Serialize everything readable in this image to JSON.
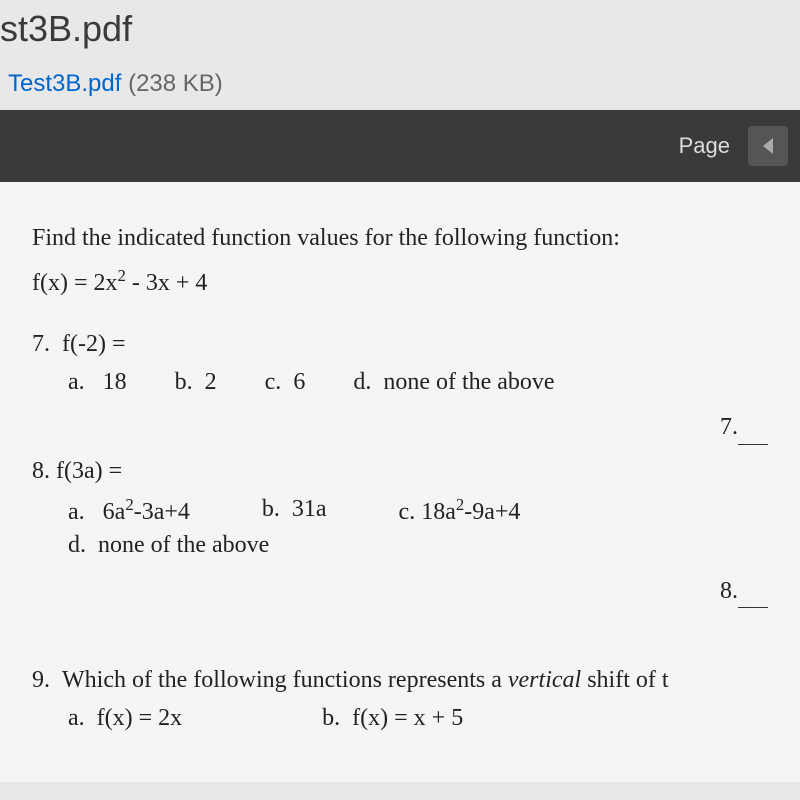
{
  "header": {
    "title": "st3B.pdf",
    "file_link": "Test3B.pdf",
    "file_size": "(238 KB)"
  },
  "toolbar": {
    "page_label": "Page"
  },
  "document": {
    "instruction": "Find the indicated function values for the following function:",
    "function": "f(x) = 2x² - 3x + 4",
    "q7": {
      "number": "7.",
      "prompt": "f(-2) =",
      "opt_a_label": "a.",
      "opt_a": "18",
      "opt_b_label": "b.",
      "opt_b": "2",
      "opt_c_label": "c.",
      "opt_c": "6",
      "opt_d_label": "d.",
      "opt_d": "none of the above",
      "answer_label": "7."
    },
    "q8": {
      "number": "8.",
      "prompt": "f(3a) =",
      "opt_a_label": "a.",
      "opt_a": "6a²-3a+4",
      "opt_b_label": "b.",
      "opt_b": "31a",
      "opt_c_label": "c.",
      "opt_c": "18a²-9a+4",
      "opt_d_label": "d.",
      "opt_d": "none of the above",
      "answer_label": "8."
    },
    "q9": {
      "number": "9.",
      "prompt_part1": "Which of the following functions represents a ",
      "prompt_italic": "vertical",
      "prompt_part2": " shift of t",
      "opt_a_label": "a.",
      "opt_a": "f(x) = 2x",
      "opt_b_label": "b.",
      "opt_b": "f(x) = x + 5"
    }
  },
  "colors": {
    "link": "#0066cc",
    "toolbar_bg": "#3a3a3a",
    "text": "#222222",
    "body_bg": "#e8e8e8",
    "doc_bg": "#f5f5f5"
  }
}
